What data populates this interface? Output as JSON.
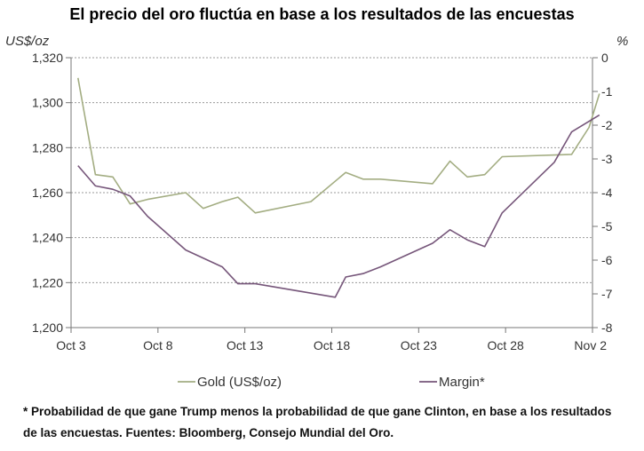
{
  "title": "El precio del oro fluctúa en base a los resultados de las encuestas",
  "footnote": "* Probabilidad de que gane Trump menos la probabilidad de que gane Clinton, en base a los resultados de las encuestas. Fuentes: Bloomberg, Consejo Mundial del Oro.",
  "chart_data": {
    "type": "line",
    "title": "El precio del oro fluctúa en base a los resultados de las encuestas",
    "y_left_label": "US$/oz",
    "y_right_label": "%",
    "x_range": [
      0,
      30
    ],
    "x_ticks": [
      {
        "x": 0,
        "label": "Oct 3"
      },
      {
        "x": 5,
        "label": "Oct 8"
      },
      {
        "x": 10,
        "label": "Oct 13"
      },
      {
        "x": 15,
        "label": "Oct 18"
      },
      {
        "x": 20,
        "label": "Oct 23"
      },
      {
        "x": 25,
        "label": "Oct 28"
      },
      {
        "x": 30,
        "label": "Nov 2"
      }
    ],
    "y_left": {
      "min": 1200,
      "max": 1320,
      "ticks": [
        "1,200",
        "1,220",
        "1,240",
        "1,260",
        "1,280",
        "1,300",
        "1,320"
      ],
      "tick_values": [
        1200,
        1220,
        1240,
        1260,
        1280,
        1300,
        1320
      ]
    },
    "y_right": {
      "min": -8,
      "max": 0,
      "ticks": [
        "-8",
        "-7",
        "-6",
        "-5",
        "-4",
        "-3",
        "-2",
        "-1",
        "0"
      ],
      "tick_values": [
        -8,
        -7,
        -6,
        -5,
        -4,
        -3,
        -2,
        -1,
        0
      ]
    },
    "grid": "horizontal dotted",
    "legend_placement": "bottom",
    "series": [
      {
        "name": "Gold (US$/oz)",
        "axis": "left",
        "color": "#a3ad82",
        "points": [
          [
            0.4,
            1311
          ],
          [
            1.4,
            1268
          ],
          [
            2.4,
            1267
          ],
          [
            3.4,
            1255
          ],
          [
            4.4,
            1257
          ],
          [
            6.6,
            1260
          ],
          [
            7.6,
            1253
          ],
          [
            8.7,
            1256
          ],
          [
            9.6,
            1258
          ],
          [
            10.6,
            1251
          ],
          [
            13.8,
            1256
          ],
          [
            15.8,
            1269
          ],
          [
            16.8,
            1266
          ],
          [
            17.8,
            1266
          ],
          [
            20.8,
            1264
          ],
          [
            21.8,
            1274
          ],
          [
            22.8,
            1267
          ],
          [
            23.8,
            1268
          ],
          [
            24.8,
            1276
          ],
          [
            28.8,
            1277
          ],
          [
            29.8,
            1289
          ],
          [
            30.4,
            1304
          ]
        ]
      },
      {
        "name": "Margin*",
        "axis": "right",
        "color": "#76567a",
        "points": [
          [
            0.4,
            -3.2
          ],
          [
            1.4,
            -3.8
          ],
          [
            2.4,
            -3.9
          ],
          [
            3.4,
            -4.1
          ],
          [
            4.4,
            -4.7
          ],
          [
            6.6,
            -5.7
          ],
          [
            8.7,
            -6.2
          ],
          [
            9.6,
            -6.7
          ],
          [
            10.6,
            -6.7
          ],
          [
            15.2,
            -7.1
          ],
          [
            15.8,
            -6.5
          ],
          [
            16.8,
            -6.4
          ],
          [
            17.8,
            -6.2
          ],
          [
            20.8,
            -5.5
          ],
          [
            21.8,
            -5.1
          ],
          [
            22.8,
            -5.4
          ],
          [
            23.8,
            -5.6
          ],
          [
            24.8,
            -4.6
          ],
          [
            27.8,
            -3.1
          ],
          [
            28.8,
            -2.2
          ],
          [
            30.4,
            -1.7
          ]
        ]
      }
    ]
  }
}
